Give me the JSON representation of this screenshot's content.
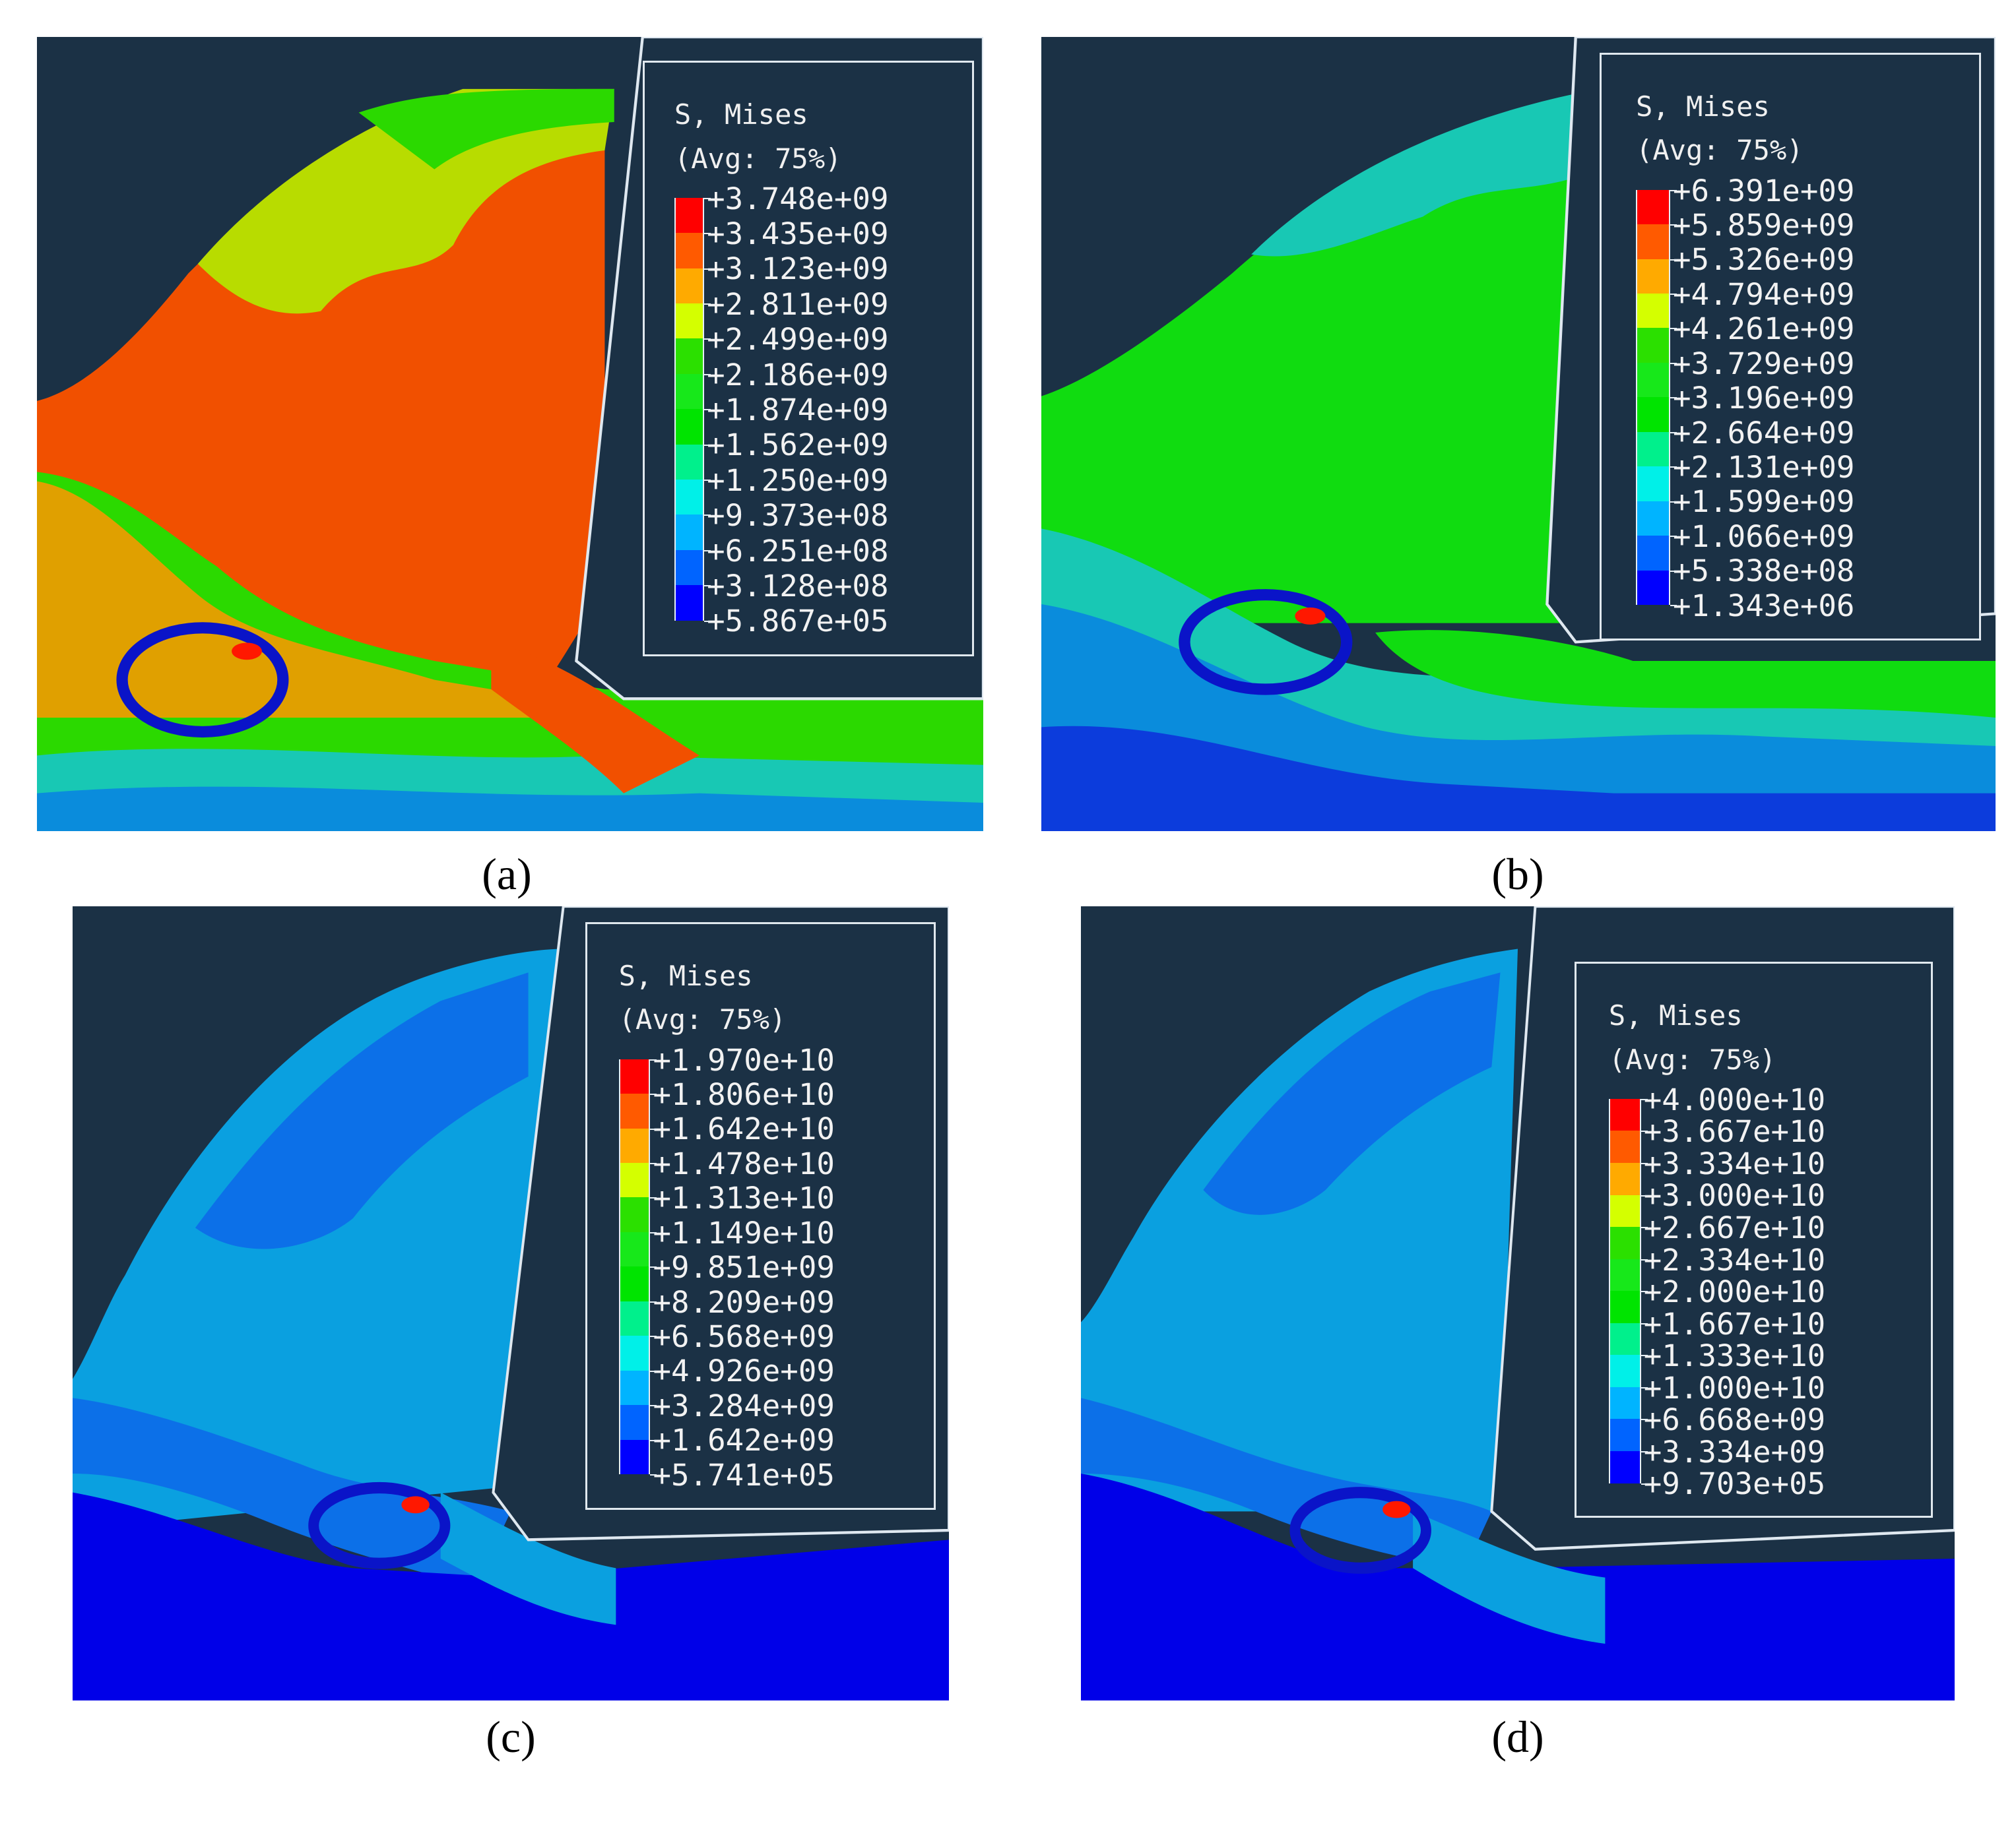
{
  "figure": {
    "background": "#ffffff",
    "panel_background": "#1b3145",
    "legend_colors": [
      "#ff0000",
      "#ff5a00",
      "#ffaa00",
      "#d4ff00",
      "#2be000",
      "#17e81a",
      "#00e400",
      "#00f08c",
      "#00f0e8",
      "#00b4ff",
      "#0064ff",
      "#0000ff"
    ],
    "highlight_ring_color": "#0a14c8"
  },
  "panels": [
    {
      "id": "a",
      "caption": "(a)",
      "legend": {
        "title": "S, Mises",
        "subtitle": "(Avg: 75%)",
        "values": [
          "+3.748e+09",
          "+3.435e+09",
          "+3.123e+09",
          "+2.811e+09",
          "+2.499e+09",
          "+2.186e+09",
          "+1.874e+09",
          "+1.562e+09",
          "+1.250e+09",
          "+9.373e+08",
          "+6.251e+08",
          "+3.128e+08",
          "+5.867e+05"
        ]
      },
      "dominant_field_color": "#f15000"
    },
    {
      "id": "b",
      "caption": "(b)",
      "legend": {
        "title": "S, Mises",
        "subtitle": "(Avg: 75%)",
        "values": [
          "+6.391e+09",
          "+5.859e+09",
          "+5.326e+09",
          "+4.794e+09",
          "+4.261e+09",
          "+3.729e+09",
          "+3.196e+09",
          "+2.664e+09",
          "+2.131e+09",
          "+1.599e+09",
          "+1.066e+09",
          "+5.338e+08",
          "+1.343e+06"
        ]
      },
      "dominant_field_color": "#10dc10"
    },
    {
      "id": "c",
      "caption": "(c)",
      "legend": {
        "title": "S, Mises",
        "subtitle": "(Avg: 75%)",
        "values": [
          "+1.970e+10",
          "+1.806e+10",
          "+1.642e+10",
          "+1.478e+10",
          "+1.313e+10",
          "+1.149e+10",
          "+9.851e+09",
          "+8.209e+09",
          "+6.568e+09",
          "+4.926e+09",
          "+3.284e+09",
          "+1.642e+09",
          "+5.741e+05"
        ]
      },
      "dominant_field_color": "#0aa0e0"
    },
    {
      "id": "d",
      "caption": "(d)",
      "legend": {
        "title": "S, Mises",
        "subtitle": "(Avg: 75%)",
        "values": [
          "+4.000e+10",
          "+3.667e+10",
          "+3.334e+10",
          "+3.000e+10",
          "+2.667e+10",
          "+2.334e+10",
          "+2.000e+10",
          "+1.667e+10",
          "+1.333e+10",
          "+1.000e+10",
          "+6.668e+09",
          "+3.334e+09",
          "+9.703e+05"
        ]
      },
      "dominant_field_color": "#0aa0e0"
    }
  ]
}
